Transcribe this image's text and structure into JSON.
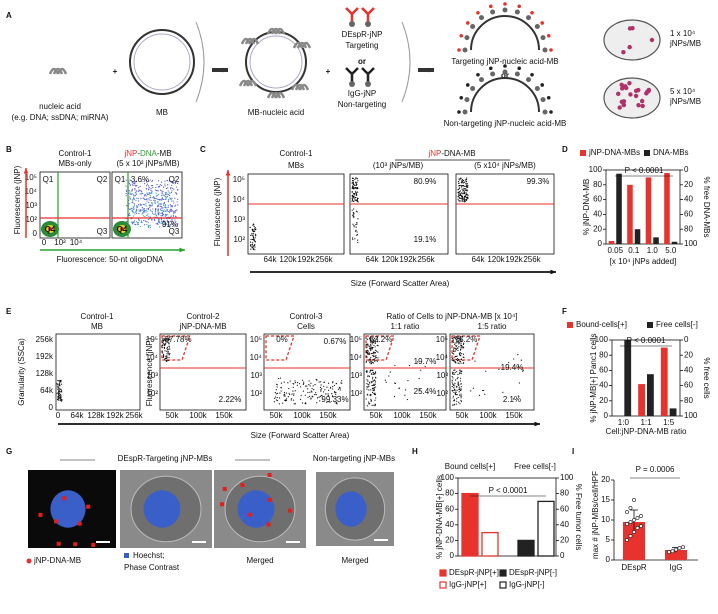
{
  "A": {
    "letter": "A",
    "nucleic_l1": "nucleic acid",
    "nucleic_l2": "(e.g. DNA; ssDNA; miRNA)",
    "plus": "+",
    "mb": "MB",
    "mb_nucleic": "MB-nucleic acid",
    "targeting_l1": "DEspR-jNP",
    "targeting_l2": "Targeting",
    "or": "or",
    "nontargeting_l1": "IgG-jNP",
    "nontargeting_l2": "Non-targeting",
    "targeting_mb": "Targeting jNP-nucleic acid-MB",
    "nontargeting_mb": "Non-targeting jNP-nucleic acid-MB",
    "low_l1": "1 x 10⁴",
    "low_l2": "jNPs/MB",
    "high_l1": "5 x 10⁴",
    "high_l2": "jNPs/MB"
  },
  "B": {
    "letter": "B",
    "plot1_l1": "Control-1",
    "plot1_l2": "MBs-only",
    "plot2_l1": [
      "jNP",
      "-",
      "DNA",
      "-MB"
    ],
    "plot2_l2": "(5 x 10² jNPs/MB)",
    "q1": "Q1",
    "q2": "Q2",
    "q3": "Q3",
    "q4": "Q4",
    "pct_q2": "3.6%",
    "pct_q3": "91%",
    "yticks": [
      "10⁵",
      "10⁴",
      "10³",
      "10²",
      "0"
    ],
    "xticks": [
      "0",
      "10²",
      "10⁴"
    ],
    "ylabel": "Fluorescence (jNP)",
    "xlabel": "Fluorescence: 50-nt oligoDNA"
  },
  "C": {
    "letter": "C",
    "header": [
      "jNP",
      "-DNA-MB"
    ],
    "plot1_l1": "Control-1",
    "plot1_l2": "MBs",
    "plot2_l2": "(10³ jNPs/MB)",
    "plot3_l2": "(5 x10⁴ jNPs/MB)",
    "pct2_top": "80.9%",
    "pct2_bottom": "19.1%",
    "pct3_top": "99.3%",
    "yticks": [
      "10⁵",
      "10⁴",
      "10³",
      "10²"
    ],
    "xticks": [
      "64k",
      "120k",
      "192k",
      "256k"
    ],
    "ylabel": "Fluorescence (jNP)",
    "xlabel": "Size (Forward Scatter Area)"
  },
  "D": {
    "letter": "D",
    "type": "bar",
    "categories": [
      "0.05",
      "0.1",
      "1.0",
      "5.0"
    ],
    "series": [
      {
        "name": "jNP-DNA-MBs",
        "color": "#e8322d",
        "values": [
          4,
          80,
          90,
          96
        ]
      },
      {
        "name": "DNA-MBs",
        "color": "#222222",
        "values": [
          95,
          20,
          9,
          3
        ],
        "axis": "y2"
      }
    ],
    "ylim": [
      0,
      100
    ],
    "yticks": [
      0,
      20,
      40,
      60,
      80,
      100
    ],
    "y2lim": [
      0,
      100
    ],
    "y2ticks": [
      0,
      20,
      40,
      60,
      80,
      100
    ],
    "pvalue": "P < 0.0001",
    "xlabel": "[x 10⁴ jNPs added]",
    "ylabel": "% jNP-DNA-MB",
    "y2label": "% free DNA-MBs"
  },
  "E": {
    "letter": "E",
    "p1_l1": "Control-1",
    "p1_l2": "MB",
    "p2_l1": "Control-2",
    "p2_l2": "jNP-DNA-MB",
    "p3_l1": "Control-3",
    "p3_l2": "Cells",
    "ratio_header": "Ratio of Cells to jNP-DNA-MB [x 10⁴]",
    "p4_l2": "1:1 ratio",
    "p5_l2": "1:5 ratio",
    "p2_top": "97.78%",
    "p2_bottom": "2.22%",
    "p3_top": "0%",
    "p3_right": "0.67%",
    "p3_bottom": "99.33%",
    "p4_top": "53.2%",
    "p4_right": "19.7%",
    "p4_bottom": "25.4%",
    "p5_top": "75.2%",
    "p5_right": "19.4%",
    "p5_bottom": "2.1%",
    "yticks": [
      "256k",
      "192k",
      "128k",
      "64k",
      "0"
    ],
    "xticks": [
      "0",
      "64k",
      "128k",
      "192k",
      "256k"
    ],
    "fticks": [
      "10⁵",
      "10⁴",
      "10³",
      "10²"
    ],
    "xticks2": [
      "50k",
      "100k",
      "150k"
    ],
    "ylabel": "Granularity (SSCa)",
    "flabel": "Fluorescence (jNP)",
    "xlabel": "Size (Forward Scatter Area)"
  },
  "F": {
    "letter": "F",
    "type": "bar",
    "categories": [
      "1:0",
      "1:1",
      "1:5"
    ],
    "series": [
      {
        "name": "Bound-cells[+]",
        "color": "#e8322d",
        "values": [
          0,
          42,
          90
        ]
      },
      {
        "name": "Free cells[-]",
        "color": "#222222",
        "values": [
          100,
          55,
          10
        ],
        "axis": "y2"
      }
    ],
    "ylim": [
      0,
      100
    ],
    "yticks": [
      0,
      20,
      40,
      60,
      80,
      100
    ],
    "y2lim": [
      0,
      100
    ],
    "y2ticks": [
      0,
      20,
      40,
      60,
      80,
      100
    ],
    "pvalue": "P < 0.0001",
    "xlabel": "Cell:jNP-DNA-MB ratio",
    "ylabel": "% jNP-MB[+] Panc1 cells",
    "y2label": "% free cells"
  },
  "G": {
    "letter": "G",
    "targeting_title": "DEspR-Targeting jNP-MBs",
    "nontargeting_title": "Non-targeting jNP-MBs",
    "cap1": "jNP-DNA-MB",
    "cap2_l1": "Hoechst;",
    "cap2_l2": "Phase Contrast",
    "cap3": "Merged",
    "cap4": "Merged"
  },
  "H": {
    "letter": "H",
    "type": "bar",
    "categories": [
      "DEspR-jNP[+]",
      "IgG-jNP[+]",
      "DEspR-jNP[-]",
      "IgG-jNP[-]"
    ],
    "values": [
      80,
      30,
      20,
      70
    ],
    "colors": [
      "#e8322d",
      "#e8322d",
      "#222222",
      "#222222"
    ],
    "filled": [
      true,
      false,
      true,
      false
    ],
    "ylim": [
      0,
      100
    ],
    "yticks": [
      0,
      20,
      40,
      60,
      80,
      100
    ],
    "y2lim": [
      0,
      100
    ],
    "y2ticks": [
      0,
      20,
      40,
      60,
      80,
      100
    ],
    "bound": "Bound cells[+]",
    "free": "Free cells[-]",
    "pvalue": "P < 0.0001",
    "ylabel": "% jNP-DNA-MB[+] cells",
    "y2label": "% Free tumor cells"
  },
  "I": {
    "letter": "I",
    "type": "bar",
    "categories": [
      "DEspR",
      "IgG"
    ],
    "values": [
      9.5,
      2.5
    ],
    "errors": [
      3,
      0.6
    ],
    "points": [
      [
        5,
        6,
        7,
        8,
        8.5,
        9,
        9.5,
        10,
        10.5,
        11,
        12,
        13,
        15
      ],
      [
        2,
        2.2,
        2.6,
        3,
        3.2
      ]
    ],
    "color": "#e8322d",
    "ylim": [
      0,
      20
    ],
    "yticks": [
      0,
      5,
      10,
      15,
      20
    ],
    "pvalue": "P = 0.0006",
    "ylabel": "max # jNP-MBs/cell/HPF"
  }
}
